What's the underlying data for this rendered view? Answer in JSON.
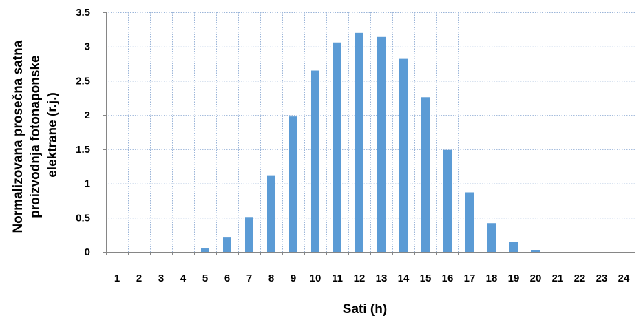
{
  "chart_data": {
    "type": "bar",
    "title": "",
    "xlabel": "Sati (h)",
    "ylabel_lines": [
      "Normalizovana prosečna satna",
      "proizvodnja fotonaponske",
      "elektrane (r.j.)"
    ],
    "categories": [
      "1",
      "2",
      "3",
      "4",
      "5",
      "6",
      "7",
      "8",
      "9",
      "10",
      "11",
      "12",
      "13",
      "14",
      "15",
      "16",
      "17",
      "18",
      "19",
      "20",
      "21",
      "22",
      "23",
      "24"
    ],
    "values": [
      0,
      0,
      0,
      0,
      0.05,
      0.21,
      0.51,
      1.12,
      1.98,
      2.65,
      3.06,
      3.2,
      3.14,
      2.83,
      2.26,
      1.49,
      0.87,
      0.42,
      0.15,
      0.03,
      0,
      0,
      0,
      0
    ],
    "ylim": [
      0,
      3.5
    ],
    "yticks": [
      "0",
      "0.5",
      "1",
      "1.5",
      "2",
      "2.5",
      "3",
      "3.5"
    ],
    "ytick_values": [
      0,
      0.5,
      1,
      1.5,
      2,
      2.5,
      3,
      3.5
    ],
    "grid": true,
    "bar_color": "#5b9bd5",
    "legend": "none"
  }
}
